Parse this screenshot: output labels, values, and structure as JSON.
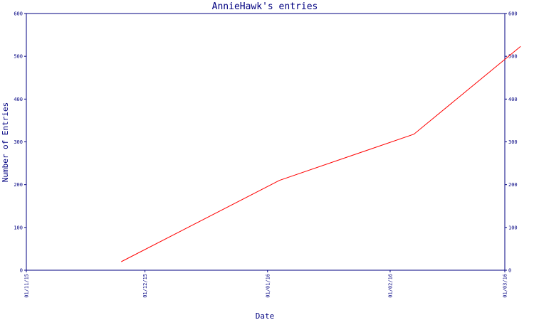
{
  "chart_data": {
    "type": "line",
    "title": "AnnieHawk's entries",
    "xlabel": "Date",
    "ylabel": "Number of Entries",
    "x_ticks": [
      "01/11/15",
      "01/12/15",
      "01/01/16",
      "01/02/16",
      "01/03/16"
    ],
    "y_ticks": [
      "0",
      "100",
      "200",
      "300",
      "400",
      "500",
      "600"
    ],
    "ylim": [
      0,
      600
    ],
    "xlim": [
      "2015-11-01",
      "2016-03-01"
    ],
    "grid": false,
    "series": [
      {
        "x": [
          "2015-11-25",
          "2016-01-04",
          "2016-02-07",
          "2016-03-05"
        ],
        "y": [
          20,
          210,
          318,
          523
        ]
      }
    ]
  },
  "colors": {
    "axis": "#000080",
    "line": "#ff0000",
    "background": "#ffffff"
  }
}
